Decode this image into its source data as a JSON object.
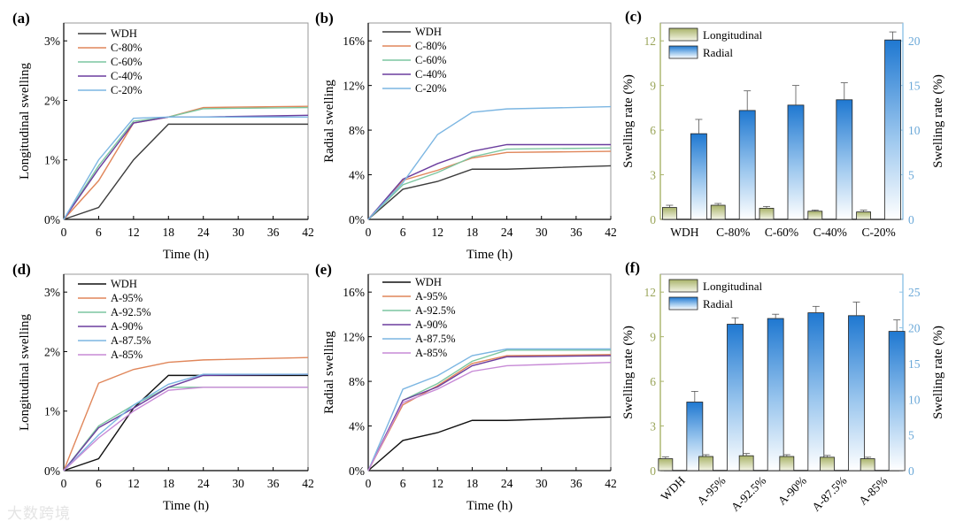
{
  "watermark": "大数跨境",
  "chart_data": [
    {
      "panel": "(a)",
      "type": "line",
      "xlabel": "Time (h)",
      "ylabel": "Longitudinal swelling",
      "xlim": [
        0,
        42
      ],
      "xticks": [
        0,
        6,
        12,
        18,
        24,
        30,
        36,
        42
      ],
      "ylim": [
        0,
        3.3
      ],
      "yticks": [
        0,
        1,
        2,
        3
      ],
      "ytick_labels": [
        "0%",
        "1%",
        "2%",
        "3%"
      ],
      "legend": "top-left",
      "x": [
        0,
        6,
        12,
        18,
        24,
        42
      ],
      "series": [
        {
          "name": "WDH",
          "color": "#3c3c3c",
          "values": [
            0,
            0.2,
            1.0,
            1.6,
            1.6,
            1.6
          ]
        },
        {
          "name": "C-80%",
          "color": "#e0865a",
          "values": [
            0,
            0.65,
            1.62,
            1.72,
            1.88,
            1.9
          ]
        },
        {
          "name": "C-60%",
          "color": "#7cc6a0",
          "values": [
            0,
            0.9,
            1.65,
            1.72,
            1.86,
            1.88
          ]
        },
        {
          "name": "C-40%",
          "color": "#6b3d9e",
          "values": [
            0,
            0.85,
            1.62,
            1.72,
            1.72,
            1.75
          ]
        },
        {
          "name": "C-20%",
          "color": "#7cb6e2",
          "values": [
            0,
            1.0,
            1.7,
            1.72,
            1.72,
            1.72
          ]
        }
      ]
    },
    {
      "panel": "(b)",
      "type": "line",
      "xlabel": "Time (h)",
      "ylabel": "Radial swelling",
      "xlim": [
        0,
        42
      ],
      "xticks": [
        0,
        6,
        12,
        18,
        24,
        30,
        36,
        42
      ],
      "ylim": [
        0,
        17.6
      ],
      "yticks": [
        0,
        4,
        8,
        12,
        16
      ],
      "ytick_labels": [
        "0%",
        "4%",
        "8%",
        "12%",
        "16%"
      ],
      "legend": "top-left",
      "x": [
        0,
        6,
        12,
        18,
        24,
        42
      ],
      "series": [
        {
          "name": "WDH",
          "color": "#3c3c3c",
          "values": [
            0,
            2.7,
            3.4,
            4.5,
            4.5,
            4.8
          ]
        },
        {
          "name": "C-80%",
          "color": "#e0865a",
          "values": [
            0,
            3.5,
            4.4,
            5.5,
            6.0,
            6.1
          ]
        },
        {
          "name": "C-60%",
          "color": "#7cc6a0",
          "values": [
            0,
            3.1,
            4.2,
            5.6,
            6.3,
            6.4
          ]
        },
        {
          "name": "C-40%",
          "color": "#6b3d9e",
          "values": [
            0,
            3.6,
            5.0,
            6.1,
            6.7,
            6.7
          ]
        },
        {
          "name": "C-20%",
          "color": "#7cb6e2",
          "values": [
            0,
            3.3,
            7.6,
            9.6,
            9.9,
            10.1
          ]
        }
      ]
    },
    {
      "panel": "(c)",
      "type": "bar",
      "ylabel": "Swelling rate (%)",
      "y2label": "Swelling rate (%)",
      "ylim": [
        0,
        13.2
      ],
      "yticks": [
        0,
        3,
        6,
        9,
        12
      ],
      "y2lim": [
        0,
        22
      ],
      "y2ticks": [
        0,
        5,
        10,
        15,
        20
      ],
      "legend": "top-left",
      "categories": [
        "WDH",
        "C-80%",
        "C-60%",
        "C-40%",
        "C-20%"
      ],
      "series": [
        {
          "name": "Longitudinal",
          "axis": "left",
          "values": [
            0.8,
            0.95,
            0.75,
            0.55,
            0.5
          ],
          "errors": [
            0.15,
            0.12,
            0.12,
            0.08,
            0.12
          ]
        },
        {
          "name": "Radial",
          "axis": "right",
          "values": [
            9.6,
            12.2,
            12.8,
            13.4,
            20.1
          ],
          "errors": [
            1.6,
            2.2,
            2.2,
            1.9,
            0.9
          ]
        }
      ]
    },
    {
      "panel": "(d)",
      "type": "line",
      "xlabel": "Time (h)",
      "ylabel": "Longitudinal swelling",
      "xlim": [
        0,
        42
      ],
      "xticks": [
        0,
        6,
        12,
        18,
        24,
        30,
        36,
        42
      ],
      "ylim": [
        0,
        3.3
      ],
      "yticks": [
        0,
        1,
        2,
        3
      ],
      "ytick_labels": [
        "0%",
        "1%",
        "2%",
        "3%"
      ],
      "legend": "top-left",
      "x": [
        0,
        6,
        12,
        18,
        24,
        42
      ],
      "series": [
        {
          "name": "WDH",
          "color": "#111111",
          "values": [
            0,
            0.2,
            1.05,
            1.6,
            1.6,
            1.6
          ]
        },
        {
          "name": "A-95%",
          "color": "#e0865a",
          "values": [
            0,
            1.47,
            1.7,
            1.82,
            1.86,
            1.9
          ]
        },
        {
          "name": "A-92.5%",
          "color": "#7cc6a0",
          "values": [
            0,
            0.75,
            1.1,
            1.4,
            1.4,
            1.4
          ]
        },
        {
          "name": "A-90%",
          "color": "#6b3d9e",
          "values": [
            0,
            0.72,
            1.05,
            1.4,
            1.6,
            1.62
          ]
        },
        {
          "name": "A-87.5%",
          "color": "#7cb6e2",
          "values": [
            0,
            0.6,
            1.1,
            1.45,
            1.62,
            1.62
          ]
        },
        {
          "name": "A-85%",
          "color": "#c78ad6",
          "values": [
            0,
            0.55,
            1.0,
            1.35,
            1.4,
            1.4
          ]
        }
      ]
    },
    {
      "panel": "(e)",
      "type": "line",
      "xlabel": "Time (h)",
      "ylabel": "Radial swelling",
      "xlim": [
        0,
        42
      ],
      "xticks": [
        0,
        6,
        12,
        18,
        24,
        30,
        36,
        42
      ],
      "ylim": [
        0,
        17.6
      ],
      "yticks": [
        0,
        4,
        8,
        12,
        16
      ],
      "ytick_labels": [
        "0%",
        "4%",
        "8%",
        "12%",
        "16%"
      ],
      "legend": "top-left",
      "x": [
        0,
        6,
        12,
        18,
        24,
        42
      ],
      "series": [
        {
          "name": "WDH",
          "color": "#111111",
          "values": [
            0,
            2.7,
            3.4,
            4.5,
            4.5,
            4.8
          ]
        },
        {
          "name": "A-95%",
          "color": "#e0865a",
          "values": [
            0,
            5.9,
            7.6,
            9.6,
            10.3,
            10.4
          ]
        },
        {
          "name": "A-92.5%",
          "color": "#7cc6a0",
          "values": [
            0,
            6.3,
            7.8,
            9.8,
            10.8,
            10.8
          ]
        },
        {
          "name": "A-90%",
          "color": "#6b3d9e",
          "values": [
            0,
            6.3,
            7.5,
            9.4,
            10.2,
            10.3
          ]
        },
        {
          "name": "A-87.5%",
          "color": "#7cb6e2",
          "values": [
            0,
            7.3,
            8.5,
            10.3,
            10.9,
            10.9
          ]
        },
        {
          "name": "A-85%",
          "color": "#c78ad6",
          "values": [
            0,
            6.1,
            7.3,
            8.9,
            9.4,
            9.7
          ]
        }
      ]
    },
    {
      "panel": "(f)",
      "type": "bar",
      "ylabel": "Swelling rate (%)",
      "y2label": "Swelling rate (%)",
      "ylim": [
        0,
        13.2
      ],
      "yticks": [
        0,
        3,
        6,
        9,
        12
      ],
      "y2lim": [
        0,
        27.5
      ],
      "y2ticks": [
        0,
        5,
        10,
        15,
        20,
        25
      ],
      "legend": "top-left",
      "categories": [
        "WDH",
        "A-95%",
        "A-92.5%",
        "A-90%",
        "A-87.5%",
        "A-85%"
      ],
      "series": [
        {
          "name": "Longitudinal",
          "axis": "left",
          "values": [
            0.8,
            0.95,
            1.0,
            0.95,
            0.9,
            0.8
          ],
          "errors": [
            0.12,
            0.12,
            0.15,
            0.12,
            0.12,
            0.1
          ]
        },
        {
          "name": "Radial",
          "axis": "right",
          "values": [
            9.6,
            20.5,
            21.3,
            22.1,
            21.7,
            19.5
          ],
          "errors": [
            1.5,
            0.9,
            0.6,
            0.9,
            1.9,
            1.6
          ]
        }
      ]
    }
  ]
}
